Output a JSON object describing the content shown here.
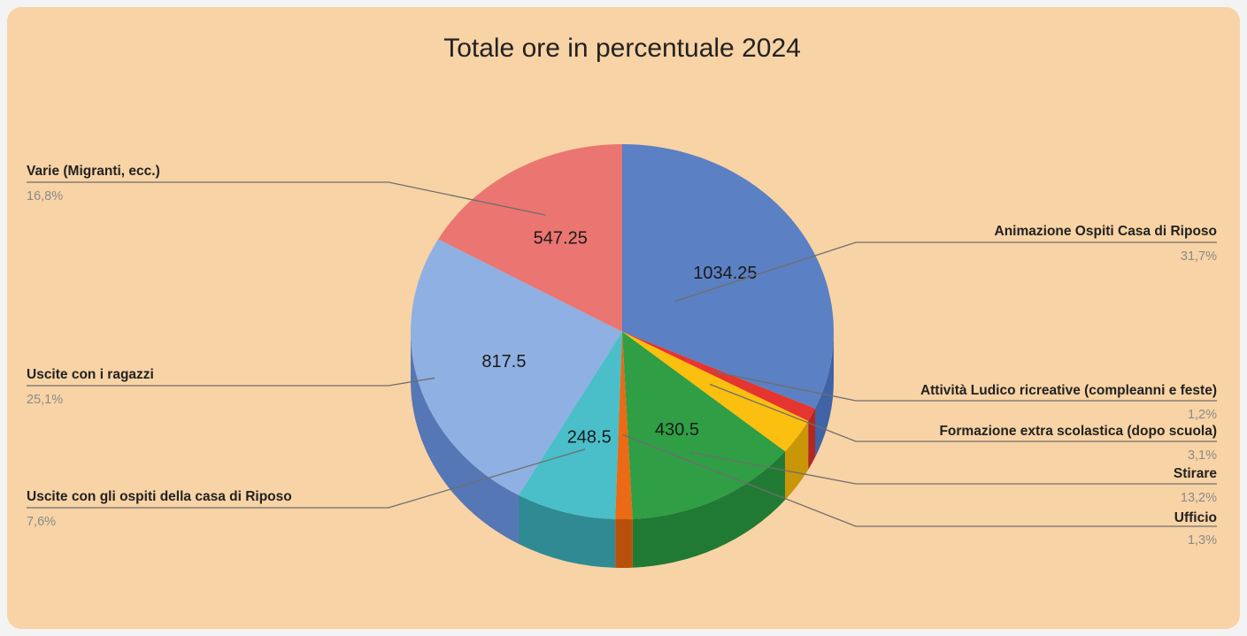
{
  "chart_data": {
    "type": "pie",
    "title": "Totale ore in percentuale 2024",
    "slices": [
      {
        "label": "Animazione Ospiti Casa di Riposo",
        "value": 1034.25,
        "percent": "31,7%",
        "color": "#5b80c4",
        "side": "#3f63a5",
        "value_label": "1034.25"
      },
      {
        "label": "Attività Ludico ricreative (compleanni e feste)",
        "value": 38.5,
        "percent": "1,2%",
        "color": "#e5352f",
        "side": "#b42622",
        "value_label": ""
      },
      {
        "label": "Formazione extra scolastica (dopo scuola)",
        "value": 101.5,
        "percent": "3,1%",
        "color": "#fbbf0f",
        "side": "#c99608",
        "value_label": ""
      },
      {
        "label": "Stirare",
        "value": 430.5,
        "percent": "13,2%",
        "color": "#2f9e45",
        "side": "#217a33",
        "value_label": "430.5"
      },
      {
        "label": "Ufficio",
        "value": 42.5,
        "percent": "1,3%",
        "color": "#ea6a15",
        "side": "#b8500c",
        "value_label": ""
      },
      {
        "label": "Uscite con gli ospiti della casa di Riposo",
        "value": 248.5,
        "percent": "7,6%",
        "color": "#4abfca",
        "side": "#2f8a93",
        "value_label": "248.5"
      },
      {
        "label": "Uscite con i ragazzi",
        "value": 817.5,
        "percent": "25,1%",
        "color": "#8fb0e2",
        "side": "#5677b6",
        "value_label": "817.5"
      },
      {
        "label": "Varie (Migranti, ecc.)",
        "value": 547.25,
        "percent": "16,8%",
        "color": "#ea7571",
        "side": "#b85450",
        "value_label": "547.25"
      }
    ],
    "legend": "labels-with-leader-lines"
  }
}
